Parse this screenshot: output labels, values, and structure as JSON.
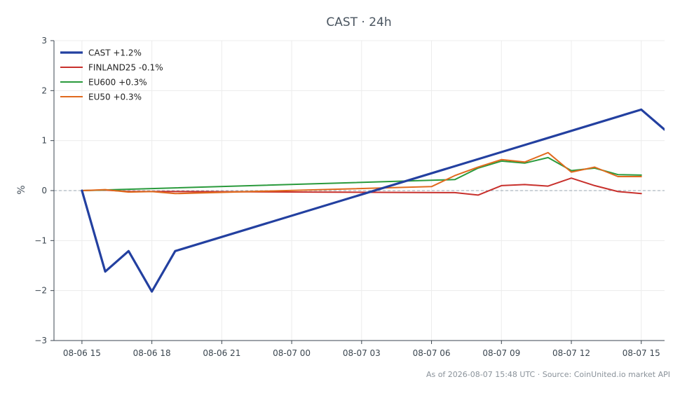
{
  "chart_data": {
    "type": "line",
    "title": "CAST · 24h",
    "xlabel": "",
    "ylabel": "%",
    "ylim": [
      -3,
      3
    ],
    "yticks": [
      3,
      2,
      1,
      0,
      -1,
      -2,
      -3
    ],
    "ytick_labels": [
      "3",
      "2",
      "1",
      "0",
      "−1",
      "−2",
      "−3"
    ],
    "xlim": [
      -1.2,
      25
    ],
    "xticks": [
      0,
      3,
      6,
      9,
      12,
      15,
      18,
      21,
      24
    ],
    "xtick_labels": [
      "08-06 15",
      "08-06 18",
      "08-06 21",
      "08-07 00",
      "08-07 03",
      "08-07 06",
      "08-07 09",
      "08-07 12",
      "08-07 15"
    ],
    "grid": true,
    "zero_line": true,
    "legend_position": "top-left",
    "series": [
      {
        "name": "CAST +1.2%",
        "color": "#2340a0",
        "x": [
          0,
          1,
          2,
          3,
          4,
          24,
          25,
          26,
          27
        ],
        "y": [
          0.0,
          -1.62,
          -1.21,
          -2.02,
          -1.21,
          1.62,
          1.22,
          1.22,
          1.22
        ]
      },
      {
        "name": "FINLAND25 -0.1%",
        "color": "#c8302c",
        "x": [
          0,
          1,
          2,
          3,
          4,
          16,
          17,
          18,
          19,
          20,
          21,
          22,
          23,
          24
        ],
        "y": [
          0.0,
          0.01,
          -0.02,
          -0.02,
          -0.02,
          -0.04,
          -0.09,
          0.1,
          0.12,
          0.09,
          0.25,
          0.1,
          -0.02,
          -0.06
        ]
      },
      {
        "name": "EU600 +0.3%",
        "color": "#2a9a3c",
        "x": [
          0,
          3,
          16,
          17,
          18,
          19,
          20,
          21,
          22,
          23,
          24
        ],
        "y": [
          0.0,
          0.04,
          0.22,
          0.45,
          0.59,
          0.55,
          0.66,
          0.4,
          0.45,
          0.32,
          0.31
        ]
      },
      {
        "name": "EU50 +0.3%",
        "color": "#e06a1e",
        "x": [
          0,
          1,
          2,
          3,
          4,
          15,
          16,
          17,
          18,
          19,
          20,
          21,
          22,
          23,
          24
        ],
        "y": [
          0.0,
          0.02,
          -0.03,
          -0.02,
          -0.06,
          0.08,
          0.3,
          0.47,
          0.62,
          0.57,
          0.76,
          0.37,
          0.47,
          0.28,
          0.28
        ]
      }
    ]
  },
  "footer": {
    "source_note": "As of 2026-08-07 15:48 UTC · Source: CoinUnited.io market API"
  }
}
